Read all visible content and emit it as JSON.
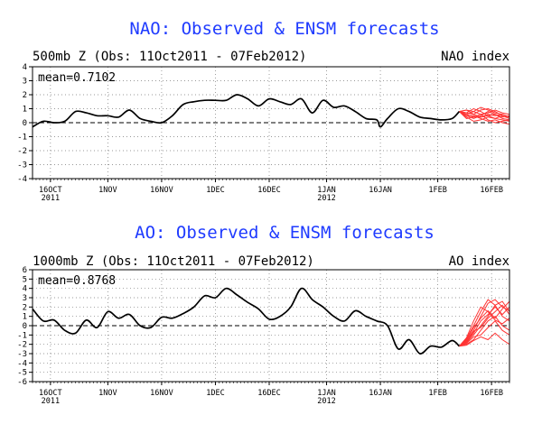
{
  "chart_data": [
    {
      "type": "line",
      "title": "NAO: Observed & ENSM forecasts",
      "subtitle_left": "500mb Z (Obs: 11Oct2011 - 07Feb2012)",
      "subtitle_right": "NAO index",
      "mean_label": "mean=0.7102",
      "ylim": [
        -4,
        4
      ],
      "yticks": [
        -4,
        -3,
        -2,
        -1,
        0,
        1,
        2,
        3,
        4
      ],
      "xlim": [
        0,
        133
      ],
      "xticks": [
        {
          "x": 5,
          "label": "16OCT",
          "sub": "2011"
        },
        {
          "x": 21,
          "label": "1NOV",
          "sub": ""
        },
        {
          "x": 36,
          "label": "16NOV",
          "sub": ""
        },
        {
          "x": 51,
          "label": "1DEC",
          "sub": ""
        },
        {
          "x": 66,
          "label": "16DEC",
          "sub": ""
        },
        {
          "x": 82,
          "label": "1JAN",
          "sub": "2012"
        },
        {
          "x": 97,
          "label": "16JAN",
          "sub": ""
        },
        {
          "x": 113,
          "label": "1FEB",
          "sub": ""
        },
        {
          "x": 128,
          "label": "16FEB",
          "sub": ""
        }
      ],
      "grid": true,
      "observed_color": "#000000",
      "forecast_color": "#ff3333",
      "observed": {
        "x": [
          0,
          3,
          6,
          9,
          12,
          15,
          18,
          21,
          24,
          27,
          30,
          33,
          36,
          39,
          42,
          45,
          48,
          51,
          54,
          57,
          60,
          63,
          66,
          69,
          72,
          75,
          78,
          81,
          84,
          87,
          90,
          93,
          96,
          97,
          99,
          102,
          105,
          108,
          111,
          114,
          117,
          119
        ],
        "y": [
          -0.3,
          0.1,
          0.0,
          0.1,
          0.8,
          0.7,
          0.5,
          0.5,
          0.4,
          0.9,
          0.3,
          0.1,
          0.0,
          0.5,
          1.3,
          1.5,
          1.6,
          1.6,
          1.6,
          2.0,
          1.7,
          1.2,
          1.7,
          1.5,
          1.3,
          1.7,
          0.7,
          1.6,
          1.1,
          1.2,
          0.8,
          0.3,
          0.2,
          -0.3,
          0.3,
          1.0,
          0.8,
          0.4,
          0.3,
          0.2,
          0.3,
          0.8
        ]
      },
      "forecast_x": [
        119,
        121,
        123,
        125,
        127,
        129,
        131,
        133
      ],
      "forecasts": [
        [
          0.8,
          0.9,
          0.6,
          0.4,
          0.5,
          0.3,
          0.2,
          0.1
        ],
        [
          0.8,
          0.5,
          0.3,
          0.5,
          0.8,
          0.6,
          0.3,
          0.2
        ],
        [
          0.8,
          0.7,
          1.0,
          0.8,
          0.5,
          0.6,
          0.4,
          0.5
        ],
        [
          0.8,
          0.4,
          0.1,
          0.2,
          0.4,
          0.3,
          0.5,
          0.3
        ],
        [
          0.8,
          0.6,
          0.8,
          1.1,
          0.9,
          0.7,
          0.6,
          0.4
        ],
        [
          0.8,
          0.3,
          0.4,
          0.6,
          0.2,
          0.0,
          0.1,
          0.2
        ],
        [
          0.8,
          0.9,
          0.8,
          0.6,
          0.7,
          0.9,
          0.7,
          0.6
        ],
        [
          0.8,
          0.5,
          0.5,
          0.3,
          0.1,
          0.2,
          0.0,
          -0.1
        ],
        [
          0.8,
          0.7,
          0.6,
          0.9,
          1.0,
          0.8,
          0.5,
          0.3
        ],
        [
          0.8,
          0.6,
          0.4,
          0.4,
          0.6,
          0.5,
          0.6,
          0.4
        ]
      ]
    },
    {
      "type": "line",
      "title": "AO: Observed & ENSM forecasts",
      "subtitle_left": "1000mb Z (Obs: 11Oct2011 - 07Feb2012)",
      "subtitle_right": "AO index",
      "mean_label": "mean=0.8768",
      "ylim": [
        -6,
        6
      ],
      "yticks": [
        -6,
        -5,
        -4,
        -3,
        -2,
        -1,
        0,
        1,
        2,
        3,
        4,
        5,
        6
      ],
      "xlim": [
        0,
        133
      ],
      "xticks": [
        {
          "x": 5,
          "label": "16OCT",
          "sub": "2011"
        },
        {
          "x": 21,
          "label": "1NOV",
          "sub": ""
        },
        {
          "x": 36,
          "label": "16NOV",
          "sub": ""
        },
        {
          "x": 51,
          "label": "1DEC",
          "sub": ""
        },
        {
          "x": 66,
          "label": "16DEC",
          "sub": ""
        },
        {
          "x": 82,
          "label": "1JAN",
          "sub": "2012"
        },
        {
          "x": 97,
          "label": "16JAN",
          "sub": ""
        },
        {
          "x": 113,
          "label": "1FEB",
          "sub": ""
        },
        {
          "x": 128,
          "label": "16FEB",
          "sub": ""
        }
      ],
      "grid": true,
      "observed_color": "#000000",
      "forecast_color": "#ff3333",
      "observed": {
        "x": [
          0,
          3,
          6,
          9,
          12,
          15,
          18,
          21,
          24,
          27,
          30,
          33,
          36,
          39,
          42,
          45,
          48,
          51,
          54,
          57,
          60,
          63,
          66,
          69,
          72,
          75,
          78,
          81,
          84,
          87,
          90,
          93,
          96,
          99,
          102,
          105,
          108,
          111,
          114,
          117,
          119
        ],
        "y": [
          1.8,
          0.5,
          0.6,
          -0.5,
          -0.8,
          0.6,
          -0.2,
          1.5,
          0.8,
          1.2,
          0.0,
          -0.2,
          0.9,
          0.8,
          1.3,
          2.0,
          3.2,
          3.0,
          4.0,
          3.3,
          2.5,
          1.8,
          0.7,
          1.0,
          2.0,
          4.0,
          2.8,
          2.0,
          1.0,
          0.5,
          1.6,
          1.0,
          0.5,
          0.0,
          -2.5,
          -1.5,
          -3.0,
          -2.2,
          -2.3,
          -1.6,
          -2.2
        ]
      },
      "forecast_x": [
        119,
        121,
        123,
        125,
        127,
        129,
        131,
        133
      ],
      "forecasts": [
        [
          -2.2,
          -1.6,
          -0.5,
          1.0,
          2.4,
          2.8,
          2.0,
          1.6
        ],
        [
          -2.2,
          -1.8,
          -1.0,
          0.0,
          1.0,
          2.2,
          2.6,
          1.5
        ],
        [
          -2.2,
          -1.4,
          0.0,
          1.5,
          2.8,
          2.2,
          1.0,
          0.5
        ],
        [
          -2.2,
          -2.0,
          -1.5,
          -0.5,
          0.5,
          1.0,
          0.0,
          -0.5
        ],
        [
          -2.2,
          -1.5,
          -0.2,
          0.8,
          1.6,
          0.8,
          1.8,
          2.6
        ],
        [
          -2.2,
          -1.9,
          -1.2,
          -1.0,
          -0.2,
          0.5,
          -0.5,
          -1.0
        ],
        [
          -2.2,
          -1.7,
          -0.8,
          0.5,
          1.2,
          2.0,
          1.2,
          2.0
        ],
        [
          -2.2,
          -1.3,
          0.5,
          2.0,
          1.5,
          0.6,
          0.2,
          0.8
        ],
        [
          -2.2,
          -1.8,
          -0.6,
          -0.2,
          0.8,
          1.5,
          2.2,
          1.2
        ],
        [
          -2.2,
          -2.1,
          -1.6,
          -1.2,
          -1.5,
          -0.8,
          -1.5,
          -2.0
        ]
      ]
    }
  ]
}
